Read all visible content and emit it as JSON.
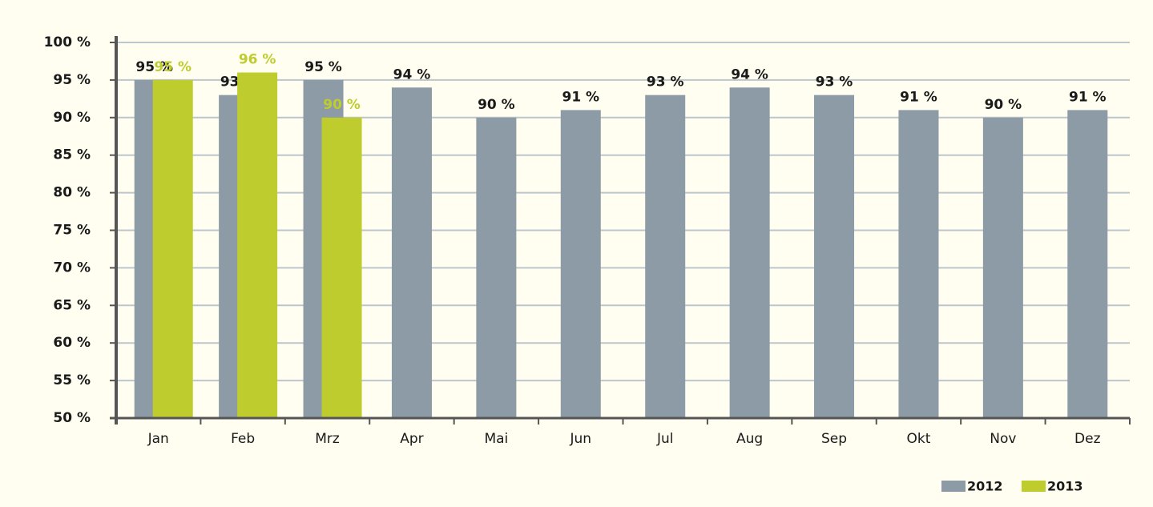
{
  "chart_data": {
    "type": "bar",
    "categories": [
      "Jan",
      "Feb",
      "Mrz",
      "Apr",
      "Mai",
      "Jun",
      "Jul",
      "Aug",
      "Sep",
      "Okt",
      "Nov",
      "Dez"
    ],
    "series": [
      {
        "name": "2012",
        "color": "#8c9ba5",
        "values": [
          95,
          93,
          95,
          94,
          90,
          91,
          93,
          94,
          93,
          91,
          90,
          91
        ],
        "value_labels": [
          "95 %",
          "93 %",
          "95 %",
          "94 %",
          "90 %",
          "91 %",
          "93 %",
          "94 %",
          "93 %",
          "91 %",
          "90 %",
          "91 %"
        ]
      },
      {
        "name": "2013",
        "color": "#bfcc2e",
        "values": [
          95,
          96,
          90,
          null,
          null,
          null,
          null,
          null,
          null,
          null,
          null,
          null
        ],
        "value_labels": [
          "95 %",
          "96 %",
          "90 %",
          null,
          null,
          null,
          null,
          null,
          null,
          null,
          null,
          null
        ]
      }
    ],
    "ylim": [
      50,
      100
    ],
    "yticks": [
      {
        "value": 50,
        "label": "50 %"
      },
      {
        "value": 55,
        "label": "55 %"
      },
      {
        "value": 60,
        "label": "60 %"
      },
      {
        "value": 65,
        "label": "65 %"
      },
      {
        "value": 70,
        "label": "70 %"
      },
      {
        "value": 75,
        "label": "75 %"
      },
      {
        "value": 80,
        "label": "80 %"
      },
      {
        "value": 85,
        "label": "85 %"
      },
      {
        "value": 90,
        "label": "90 %"
      },
      {
        "value": 95,
        "label": "95 %"
      },
      {
        "value": 100,
        "label": "100 %"
      }
    ],
    "grid": true,
    "legend": "bottom-right"
  }
}
